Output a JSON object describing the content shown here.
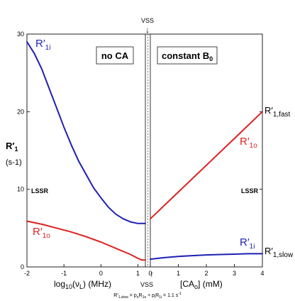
{
  "chart_data": {
    "type": "line",
    "left_panel": {
      "title": "no CA",
      "xlabel_prefix": "log",
      "xlabel_sub": "10",
      "xlabel_arg": "(ν",
      "xlabel_arg_sub": "L",
      "xlabel_suffix": ") (MHz)",
      "xlim": [
        -2,
        1.2
      ],
      "x_ticks": [
        "-2",
        "-1",
        "0",
        "1"
      ],
      "series": [
        {
          "name_main": "R′",
          "name_sub": "1i",
          "color": "#1f1fb4",
          "x": [
            -2,
            -1.8,
            -1.6,
            -1.4,
            -1.2,
            -1.0,
            -0.8,
            -0.6,
            -0.4,
            -0.2,
            0,
            0.2,
            0.4,
            0.6,
            0.8,
            1.0,
            1.1,
            1.2
          ],
          "y": [
            29,
            27.5,
            25.5,
            23,
            20.5,
            18,
            15.7,
            13.6,
            11.9,
            10.2,
            8.9,
            7.7,
            6.8,
            6.2,
            5.8,
            5.6,
            5.6,
            5.6
          ]
        },
        {
          "name_main": "R′",
          "name_sub": "1o",
          "color": "#e02020",
          "x": [
            -2,
            -1.6,
            -1.2,
            -0.8,
            -0.4,
            0,
            0.4,
            0.8,
            1.0,
            1.1,
            1.2
          ],
          "y": [
            5.9,
            5.5,
            5.0,
            4.5,
            3.9,
            3.2,
            2.4,
            1.6,
            1.1,
            0.9,
            0.9
          ]
        }
      ]
    },
    "right_panel": {
      "title_main": "constant B",
      "title_sub": "0",
      "xlabel": "[CA",
      "xlabel_sub": "o",
      "xlabel_suffix": "] (mM)",
      "xlim": [
        0,
        4
      ],
      "x_ticks": [
        "0",
        "1",
        "2",
        "3",
        "4"
      ],
      "series": [
        {
          "name_main": "R′",
          "name_sub": "1o",
          "color": "#e02020",
          "x": [
            0,
            1,
            2,
            3,
            4
          ],
          "y": [
            6.2,
            9.65,
            13.1,
            16.55,
            20.0
          ]
        },
        {
          "name_main": "R′",
          "name_sub": "1i",
          "color": "#1f1fb4",
          "x": [
            0,
            0.5,
            1.0,
            1.5,
            2.0,
            2.5,
            3.0,
            3.5,
            4.0
          ],
          "y": [
            1.0,
            1.2,
            1.35,
            1.45,
            1.55,
            1.6,
            1.65,
            1.7,
            1.7
          ]
        }
      ]
    },
    "ylim": [
      0,
      30
    ],
    "y_ticks": [
      "0",
      "10",
      "20",
      "30"
    ],
    "ylabel_main": "R′",
    "ylabel_sub": "1",
    "ylabel_unit": "(s-1)",
    "lssr_label": "LSSR",
    "vss_label": "VSS",
    "vss_arrow_top": "↓",
    "vss_arrow_bottom": "↑",
    "end_label_fast_main": "R′",
    "end_label_fast_sub": "1,fast",
    "end_label_slow_main": "R′",
    "end_label_slow_sub": "1,slow",
    "footnote": {
      "p1": "R′",
      "s1": "1,slow",
      "p2": " = p",
      "s2": "o",
      "p3": "R",
      "s3": "1o",
      "p4": " + p",
      "s4": "i",
      "p5": "R",
      "s5": "1i",
      "p6": " = 1.1 s",
      "sup": "-1"
    }
  }
}
